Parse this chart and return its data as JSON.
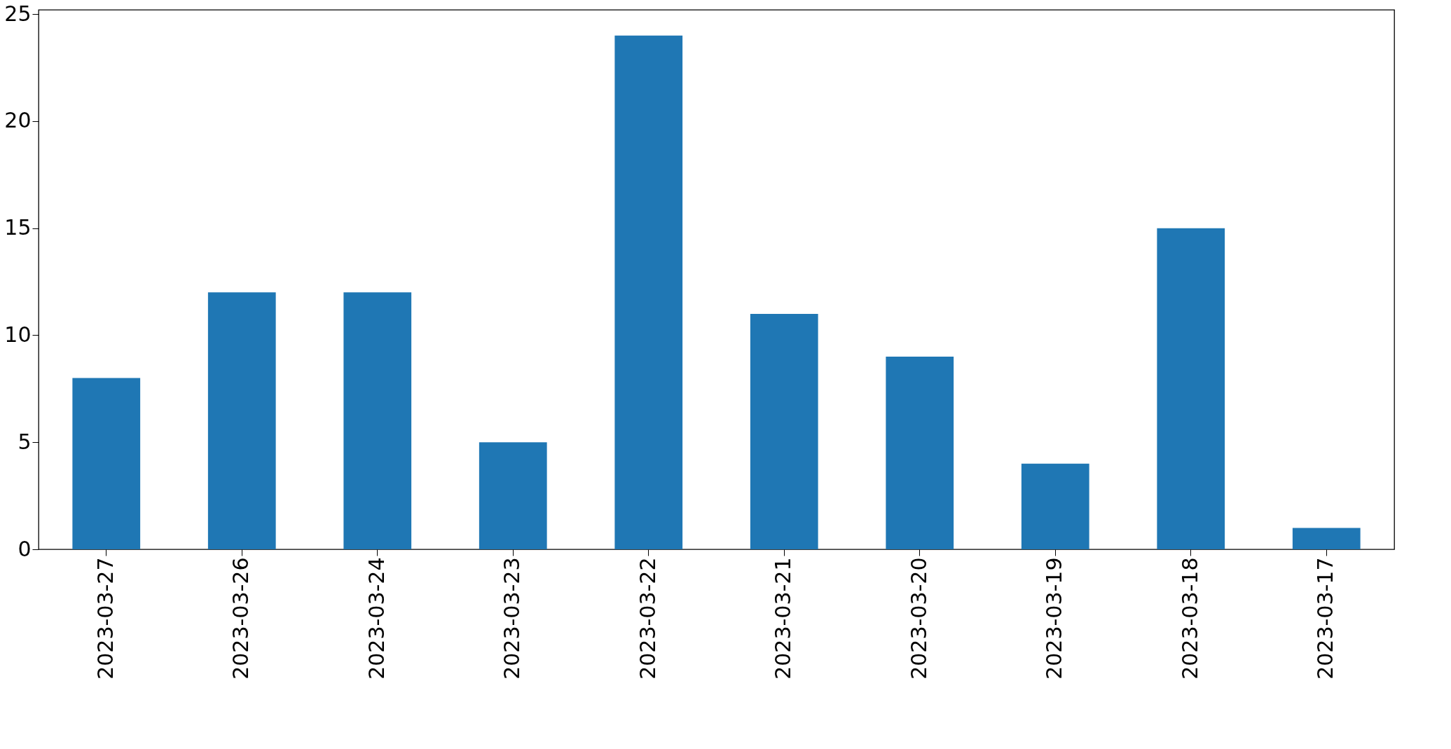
{
  "chart_data": {
    "type": "bar",
    "categories": [
      "2023-03-27",
      "2023-03-26",
      "2023-03-24",
      "2023-03-23",
      "2023-03-22",
      "2023-03-21",
      "2023-03-20",
      "2023-03-19",
      "2023-03-18",
      "2023-03-17"
    ],
    "values": [
      8,
      12,
      12,
      5,
      24,
      11,
      9,
      4,
      15,
      1
    ],
    "color": "#1f77b4",
    "ylim": [
      0,
      25.2
    ],
    "yticks": [
      0,
      5,
      10,
      15,
      20,
      25
    ],
    "grid": false
  }
}
